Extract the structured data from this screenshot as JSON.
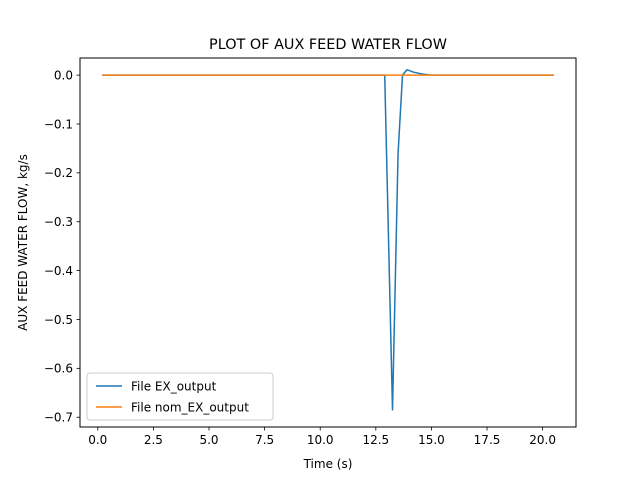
{
  "chart_data": {
    "type": "line",
    "title": "PLOT OF AUX FEED WATER FLOW",
    "xlabel": "Time (s)",
    "ylabel": "AUX FEED WATER FLOW, kg/s",
    "xlim": [
      -0.8,
      21.5
    ],
    "ylim": [
      -0.72,
      0.035
    ],
    "x_ticks": [
      0.0,
      2.5,
      5.0,
      7.5,
      10.0,
      12.5,
      15.0,
      17.5,
      20.0
    ],
    "x_tick_labels": [
      "0.0",
      "2.5",
      "5.0",
      "7.5",
      "10.0",
      "12.5",
      "15.0",
      "17.5",
      "20.0"
    ],
    "y_ticks": [
      0.0,
      -0.1,
      -0.2,
      -0.3,
      -0.4,
      -0.5,
      -0.6,
      -0.7
    ],
    "y_tick_labels": [
      "0.0",
      "−0.1",
      "−0.2",
      "−0.3",
      "−0.4",
      "−0.5",
      "−0.6",
      "−0.7"
    ],
    "grid": false,
    "legend_position": "lower-left",
    "series": [
      {
        "name": "File EX_output",
        "color": "#1f77b4",
        "x": [
          0.2,
          12.9,
          13.25,
          13.5,
          13.7,
          13.9,
          14.2,
          14.6,
          15.0,
          20.5
        ],
        "y": [
          0.0,
          0.0,
          -0.685,
          -0.16,
          0.0,
          0.011,
          0.006,
          0.002,
          0.0,
          0.0
        ]
      },
      {
        "name": "File nom_EX_output",
        "color": "#ff7f0e",
        "x": [
          0.2,
          20.5
        ],
        "y": [
          0.0,
          0.0
        ]
      }
    ]
  }
}
